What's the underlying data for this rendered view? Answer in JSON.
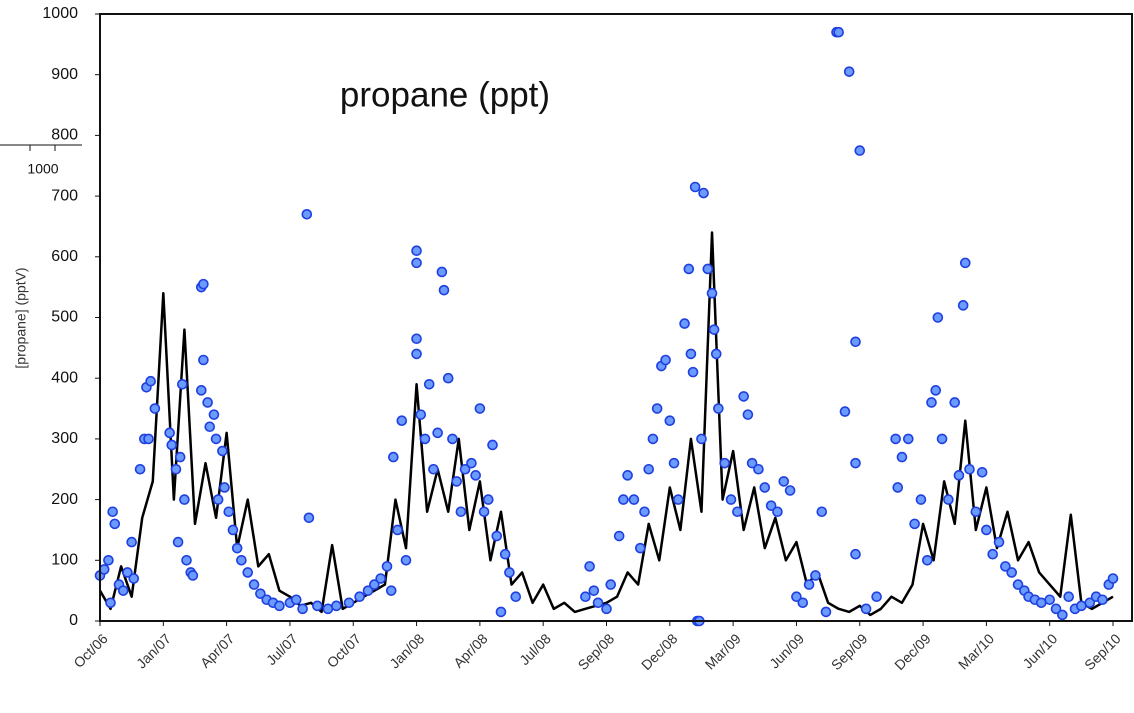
{
  "chart_data": {
    "type": "scatter",
    "title": "propane (ppt)",
    "y_label": "[propane] (pptV)",
    "inset_label": "1000",
    "xlim": [
      0,
      48.9
    ],
    "ylim": [
      0,
      1000
    ],
    "yticks": [
      0,
      100,
      200,
      300,
      400,
      500,
      600,
      700,
      800,
      900,
      1000
    ],
    "xticks": [
      {
        "value": 0,
        "label": "Oct/06"
      },
      {
        "value": 3,
        "label": "Jan/07"
      },
      {
        "value": 6,
        "label": "Apr/07"
      },
      {
        "value": 9,
        "label": "Jul/07"
      },
      {
        "value": 12,
        "label": "Oct/07"
      },
      {
        "value": 15,
        "label": "Jan/08"
      },
      {
        "value": 18,
        "label": "Apr/08"
      },
      {
        "value": 21,
        "label": "Jul/08"
      },
      {
        "value": 24,
        "label": "Sep/08"
      },
      {
        "value": 27,
        "label": "Dec/08"
      },
      {
        "value": 30,
        "label": "Mar/09"
      },
      {
        "value": 33,
        "label": "Jun/09"
      },
      {
        "value": 36,
        "label": "Sep/09"
      },
      {
        "value": 39,
        "label": "Dec/09"
      },
      {
        "value": 42,
        "label": "Mar/10"
      },
      {
        "value": 45,
        "label": "Jun/10"
      },
      {
        "value": 48,
        "label": "Sep/10"
      }
    ],
    "series": [
      {
        "type": "line",
        "color": "#000000",
        "x": [
          0,
          0.5,
          1,
          1.5,
          2,
          2.5,
          3,
          3.5,
          4,
          4.5,
          5,
          5.5,
          6,
          6.5,
          7,
          7.5,
          8,
          8.5,
          9,
          9.5,
          10,
          10.5,
          11,
          11.5,
          12,
          12.5,
          13,
          13.5,
          14,
          14.5,
          15,
          15.5,
          16,
          16.5,
          17,
          17.5,
          18,
          18.5,
          19,
          19.5,
          20,
          20.5,
          21,
          21.5,
          22,
          22.5,
          23,
          23.5,
          24,
          24.5,
          25,
          25.5,
          26,
          26.5,
          27,
          27.5,
          28,
          28.5,
          29,
          29.5,
          30,
          30.5,
          31,
          31.5,
          32,
          32.5,
          33,
          33.5,
          34,
          34.5,
          35,
          35.5,
          36,
          36.5,
          37,
          37.5,
          38,
          38.5,
          39,
          39.5,
          40,
          40.5,
          41,
          41.5,
          42,
          42.5,
          43,
          43.5,
          44,
          44.5,
          45,
          45.5,
          46,
          46.5,
          47,
          47.5,
          48
        ],
        "values": [
          50,
          20,
          90,
          40,
          170,
          230,
          540,
          200,
          480,
          160,
          260,
          170,
          310,
          120,
          200,
          90,
          110,
          50,
          40,
          25,
          30,
          15,
          125,
          20,
          30,
          40,
          50,
          60,
          200,
          120,
          390,
          180,
          250,
          180,
          300,
          150,
          230,
          100,
          180,
          60,
          80,
          30,
          60,
          20,
          30,
          15,
          20,
          25,
          30,
          40,
          80,
          60,
          160,
          100,
          220,
          150,
          300,
          180,
          640,
          200,
          280,
          150,
          220,
          120,
          170,
          100,
          130,
          60,
          80,
          30,
          20,
          15,
          25,
          10,
          20,
          40,
          30,
          60,
          160,
          100,
          230,
          160,
          330,
          150,
          220,
          120,
          180,
          100,
          130,
          80,
          60,
          40,
          175,
          30,
          20,
          30,
          40
        ]
      },
      {
        "type": "scatter",
        "color": "#6b9bff",
        "x": [
          0,
          0.2,
          0.4,
          0.5,
          0.6,
          0.7,
          0.9,
          1.1,
          1.3,
          1.5,
          1.6,
          1.9,
          2.1,
          2.2,
          2.4,
          2.3,
          2.6,
          3.3,
          3.4,
          3.6,
          3.8,
          3.9,
          4.0,
          3.7,
          4.1,
          4.3,
          4.4,
          4.8,
          4.9,
          4.9,
          4.8,
          5.1,
          5.2,
          5.4,
          5.5,
          5.6,
          5.8,
          5.9,
          6.1,
          6.3,
          6.5,
          6.7,
          7.0,
          7.3,
          7.6,
          7.9,
          8.2,
          8.5,
          9.0,
          9.3,
          9.6,
          9.8,
          9.9,
          10.3,
          10.8,
          11.2,
          11.8,
          12.3,
          12.7,
          13.0,
          13.3,
          13.6,
          13.8,
          13.9,
          14.1,
          14.3,
          14.5,
          15.0,
          15.0,
          15.0,
          15.0,
          15.2,
          15.4,
          15.6,
          15.8,
          16.0,
          16.2,
          16.3,
          16.5,
          16.7,
          16.9,
          17.1,
          17.3,
          17.6,
          17.8,
          18.0,
          18.2,
          18.4,
          18.6,
          18.8,
          19.0,
          19.2,
          19.4,
          19.7,
          23.0,
          23.2,
          23.4,
          23.6,
          24.0,
          24.2,
          24.6,
          24.8,
          25.0,
          25.3,
          25.6,
          25.8,
          26.0,
          26.2,
          26.4,
          26.6,
          26.8,
          27.0,
          27.2,
          27.4,
          27.7,
          27.9,
          28.0,
          28.1,
          28.2,
          28.3,
          28.4,
          28.5,
          28.6,
          28.8,
          29.0,
          29.1,
          29.2,
          29.3,
          29.6,
          29.9,
          30.2,
          30.5,
          30.7,
          30.9,
          31.2,
          31.5,
          31.8,
          32.1,
          32.4,
          32.7,
          33.0,
          33.3,
          33.6,
          33.9,
          34.2,
          34.4,
          34.9,
          35.0,
          35.5,
          36.0,
          35.3,
          35.8,
          35.8,
          35.8,
          36.3,
          36.8,
          37.7,
          37.8,
          38.0,
          38.3,
          38.6,
          38.9,
          39.2,
          39.4,
          39.6,
          39.7,
          39.9,
          40.2,
          40.5,
          40.7,
          40.9,
          41.0,
          41.2,
          41.5,
          41.8,
          42.0,
          42.3,
          42.6,
          42.9,
          43.2,
          43.5,
          43.8,
          44.0,
          44.3,
          44.6,
          45.0,
          45.3,
          45.6,
          45.9,
          46.2,
          46.5,
          46.9,
          47.2,
          47.5,
          47.8,
          48.0
        ],
        "values": [
          75,
          85,
          100,
          30,
          180,
          160,
          60,
          50,
          80,
          130,
          70,
          250,
          300,
          385,
          395,
          300,
          350,
          310,
          290,
          250,
          270,
          390,
          200,
          130,
          100,
          80,
          75,
          550,
          555,
          430,
          380,
          360,
          320,
          340,
          300,
          200,
          280,
          220,
          180,
          150,
          120,
          100,
          80,
          60,
          45,
          35,
          30,
          25,
          30,
          35,
          20,
          670,
          170,
          25,
          20,
          25,
          30,
          40,
          50,
          60,
          70,
          90,
          50,
          270,
          150,
          330,
          100,
          610,
          590,
          440,
          465,
          340,
          300,
          390,
          250,
          310,
          575,
          545,
          400,
          300,
          230,
          180,
          250,
          260,
          240,
          350,
          180,
          200,
          290,
          140,
          15,
          110,
          80,
          40,
          40,
          90,
          50,
          30,
          20,
          60,
          140,
          200,
          240,
          200,
          120,
          180,
          250,
          300,
          350,
          420,
          430,
          330,
          260,
          200,
          490,
          580,
          440,
          410,
          715,
          0,
          0,
          300,
          705,
          580,
          540,
          480,
          440,
          350,
          260,
          200,
          180,
          370,
          340,
          260,
          250,
          220,
          190,
          180,
          230,
          215,
          40,
          30,
          60,
          75,
          180,
          15,
          970,
          970,
          905,
          775,
          345,
          460,
          260,
          110,
          20,
          40,
          300,
          220,
          270,
          300,
          160,
          200,
          100,
          360,
          380,
          500,
          300,
          200,
          360,
          240,
          520,
          590,
          250,
          180,
          245,
          150,
          110,
          130,
          90,
          80,
          60,
          50,
          40,
          35,
          30,
          35,
          20,
          10,
          40,
          20,
          25,
          30,
          40,
          35,
          60,
          70
        ]
      }
    ]
  }
}
